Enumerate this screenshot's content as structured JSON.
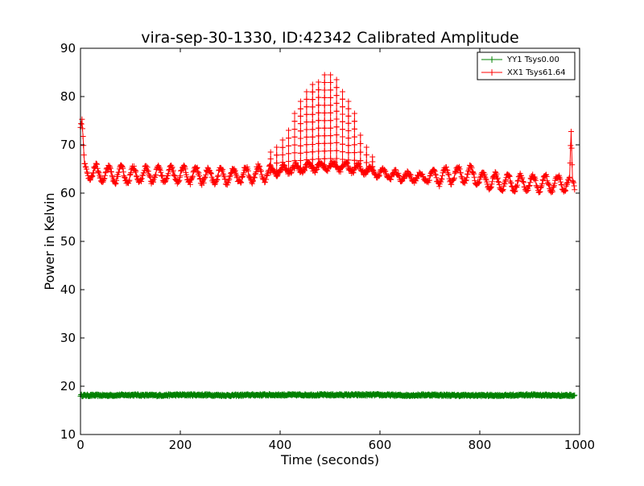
{
  "chart_data": {
    "type": "line",
    "title": "vira-sep-30-1330, ID:42342 Calibrated Amplitude",
    "xlabel": "Time (seconds)",
    "ylabel": "Power in Kelvin",
    "xlim": [
      0,
      1000
    ],
    "ylim": [
      10,
      90
    ],
    "xticks": [
      "0",
      "200",
      "400",
      "600",
      "800",
      "1000"
    ],
    "yticks": [
      "10",
      "20",
      "30",
      "40",
      "50",
      "60",
      "70",
      "80",
      "90"
    ],
    "grid": false,
    "legend_position": "top-right",
    "marker": "+",
    "series": [
      {
        "name": "YY1 Tsys0.00",
        "color": "#008000",
        "baseline_x": [
          0,
          50,
          100,
          150,
          200,
          250,
          300,
          350,
          400,
          450,
          500,
          550,
          600,
          650,
          700,
          750,
          800,
          850,
          900,
          950,
          990
        ],
        "baseline_y": [
          18.1,
          18.1,
          18.2,
          18.1,
          18.2,
          18.2,
          18.1,
          18.2,
          18.2,
          18.2,
          18.2,
          18.2,
          18.2,
          18.1,
          18.2,
          18.1,
          18.1,
          18.1,
          18.2,
          18.1,
          18.1
        ],
        "noise": 0.2
      },
      {
        "name": "XX1 Tsys61.64",
        "color": "#ff0000",
        "baseline_x": [
          0,
          3,
          8,
          50,
          100,
          150,
          200,
          250,
          300,
          350,
          380,
          400,
          420,
          440,
          460,
          480,
          500,
          520,
          540,
          560,
          580,
          600,
          620,
          650,
          700,
          750,
          790,
          800,
          850,
          900,
          950,
          980,
          983,
          986,
          990
        ],
        "baseline_y": [
          74,
          74,
          64.5,
          63.8,
          63.8,
          63.8,
          63.8,
          63.6,
          63.5,
          64.0,
          64.2,
          64.8,
          65.0,
          65.2,
          65.4,
          65.5,
          65.6,
          65.5,
          65.3,
          65.0,
          64.6,
          64.2,
          63.8,
          63.4,
          63.2,
          63.8,
          63.8,
          62.6,
          62.2,
          62.0,
          62.0,
          62.0,
          71,
          62,
          61.8
        ],
        "oscillation_amplitude": 1.6,
        "oscillation_period": 25,
        "spike_peaks_x": [
          381,
          393,
          405,
          417,
          429,
          441,
          453,
          465,
          477,
          489,
          501,
          513,
          525,
          537,
          549,
          561,
          573,
          585
        ],
        "spike_peaks_y": [
          68.5,
          69.5,
          71,
          73,
          76.5,
          79,
          81,
          82.5,
          83,
          84.5,
          84.5,
          83.5,
          81,
          79,
          76.5,
          72,
          69.5,
          67.5
        ]
      }
    ]
  }
}
